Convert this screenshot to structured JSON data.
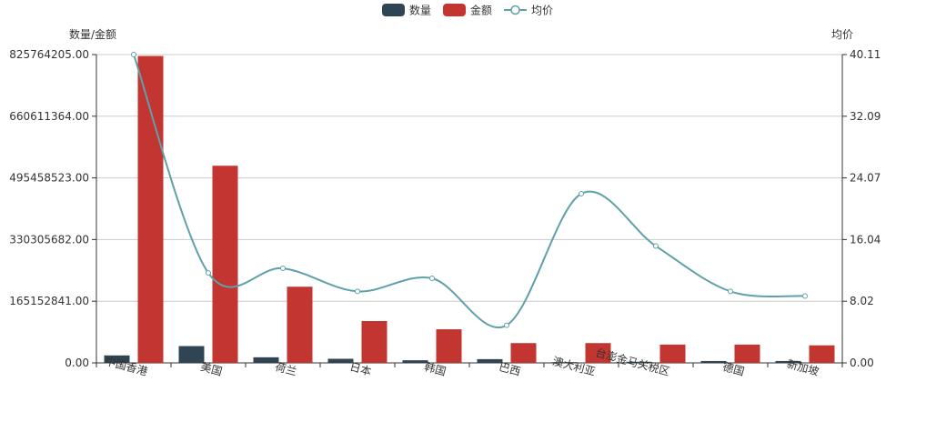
{
  "chart_data": {
    "type": "bar",
    "categories": [
      "中国香港",
      "美国",
      "荷兰",
      "日本",
      "韩国",
      "巴西",
      "澳大利亚",
      "台澎金马关税区",
      "德国",
      "新加坡"
    ],
    "series": [
      {
        "name": "数量",
        "type": "bar",
        "axis": "left",
        "color": "#2f4554",
        "values": [
          20000000,
          45000000,
          15000000,
          11000000,
          7000000,
          10000000,
          2000000,
          3000000,
          5000000,
          5000000
        ]
      },
      {
        "name": "金额",
        "type": "bar",
        "axis": "left",
        "color": "#c23531",
        "values": [
          822000000,
          528000000,
          204000000,
          112000000,
          90000000,
          53000000,
          53000000,
          49000000,
          49000000,
          47000000
        ]
      },
      {
        "name": "均价",
        "type": "line",
        "smooth": true,
        "axis": "right",
        "color": "#61a0a8",
        "values": [
          40.11,
          11.7,
          12.3,
          9.3,
          11.0,
          4.9,
          22.0,
          15.2,
          9.3,
          8.7
        ]
      }
    ],
    "y_left": {
      "label": "数量/金额",
      "min": 0,
      "max": 825764205.0,
      "ticks": [
        "0.00",
        "165152841.00",
        "330305682.00",
        "495458523.00",
        "660611364.00",
        "825764205.00"
      ]
    },
    "y_right": {
      "label": "均价",
      "min": 0,
      "max": 40.11,
      "ticks": [
        "0.00",
        "8.02",
        "16.04",
        "24.07",
        "32.09",
        "40.11"
      ]
    },
    "legend": {
      "position": "top-center",
      "items": [
        "数量",
        "金额",
        "均价"
      ]
    },
    "grid": true,
    "title": ""
  }
}
